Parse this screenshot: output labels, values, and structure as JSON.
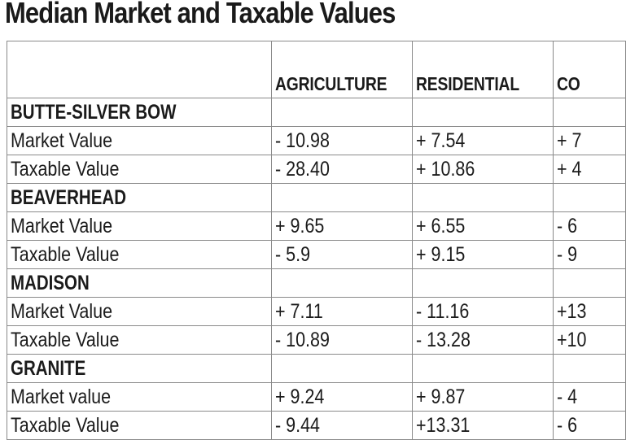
{
  "title": "Median Market and Taxable Values",
  "columns": [
    "",
    "AGRICULTURE",
    "RESIDENTIAL",
    "CO"
  ],
  "sections": [
    {
      "name": "BUTTE-SILVER BOW",
      "rows": [
        {
          "label": "Market Value",
          "values": [
            "- 10.98",
            "+ 7.54",
            "+ 7"
          ]
        },
        {
          "label": "Taxable Value",
          "values": [
            "- 28.40",
            "+ 10.86",
            "+ 4"
          ]
        }
      ]
    },
    {
      "name": "BEAVERHEAD",
      "rows": [
        {
          "label": "Market Value",
          "values": [
            "+ 9.65",
            "+ 6.55",
            "- 6"
          ]
        },
        {
          "label": "Taxable Value",
          "values": [
            "- 5.9",
            "+ 9.15",
            "- 9"
          ]
        }
      ]
    },
    {
      "name": "MADISON",
      "rows": [
        {
          "label": "Market Value",
          "values": [
            "+ 7.11",
            "- 11.16",
            "+13"
          ]
        },
        {
          "label": "Taxable Value",
          "values": [
            "- 10.89",
            "- 13.28",
            "+10"
          ]
        }
      ]
    },
    {
      "name": "GRANITE",
      "rows": [
        {
          "label": "Market value",
          "values": [
            "+ 9.24",
            "+ 9.87",
            "- 4"
          ]
        },
        {
          "label": "Taxable Value",
          "values": [
            "- 9.44",
            "+13.31",
            "- 6"
          ]
        }
      ]
    }
  ]
}
